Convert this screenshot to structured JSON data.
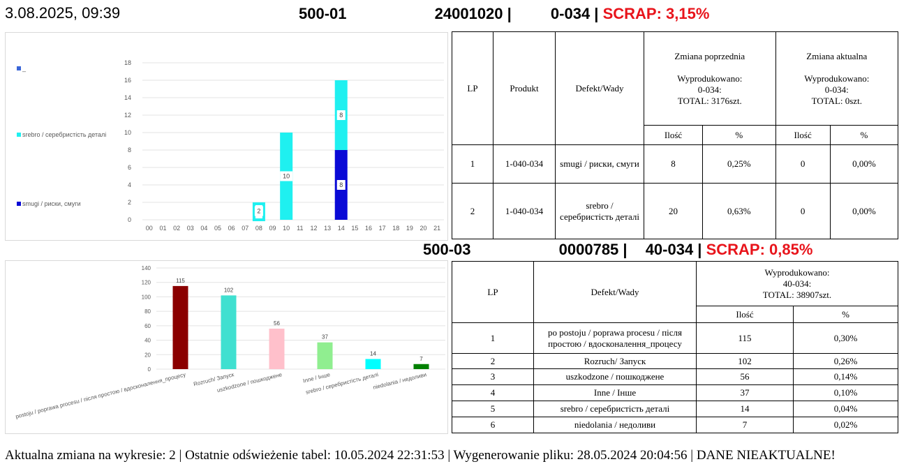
{
  "datetime": "3.08.2025, 09:39",
  "header1": {
    "part1": "500-01",
    "part2": "24001020 |",
    "part3": "0-034 |",
    "scrap": "SCRAP: 3,15%"
  },
  "header2": {
    "part1": "500-03",
    "part2": "0000785 |",
    "part3": "40-034 |",
    "scrap": "SCRAP: 0,85%"
  },
  "chart_data": [
    {
      "type": "bar",
      "stacked": true,
      "categories": [
        "00",
        "01",
        "02",
        "03",
        "04",
        "05",
        "06",
        "07",
        "08",
        "09",
        "10",
        "11",
        "12",
        "13",
        "14",
        "15",
        "16",
        "17",
        "18",
        "19",
        "20",
        "21"
      ],
      "series": [
        {
          "name": "smugi / риски, смуги",
          "color": "#0a0ad6",
          "values": [
            0,
            0,
            0,
            0,
            0,
            0,
            0,
            0,
            0,
            0,
            0,
            0,
            0,
            0,
            8,
            0,
            0,
            0,
            0,
            0,
            0,
            0
          ]
        },
        {
          "name": "srebro / серебристість деталі",
          "color": "#1ff0f0",
          "values": [
            0,
            0,
            0,
            0,
            0,
            0,
            0,
            0,
            0,
            0,
            10,
            0,
            0,
            0,
            8,
            0,
            0,
            0,
            0,
            0,
            0,
            0
          ]
        },
        {
          "name": "_",
          "color": "#3a66d8",
          "values": [
            0,
            0,
            0,
            0,
            0,
            0,
            0,
            0,
            2,
            0,
            0,
            0,
            0,
            0,
            0,
            0,
            0,
            0,
            0,
            0,
            0,
            0
          ]
        }
      ],
      "data_labels": [
        {
          "category": "08",
          "value": 2
        },
        {
          "category": "10",
          "value": 10
        },
        {
          "category": "14",
          "value": 8,
          "series": "srebro / серебристість деталі"
        },
        {
          "category": "14",
          "value": 8,
          "series": "smugi / риски, смуги"
        }
      ],
      "ylim": [
        0,
        18
      ],
      "yticks": [
        0,
        2,
        4,
        6,
        8,
        10,
        12,
        14,
        16,
        18
      ],
      "grid": true,
      "legend": "left"
    },
    {
      "type": "bar",
      "categories": [
        "postoju / poprawa procesu / після простою / вдосконалення_процесу",
        "Rozruch/ Запуск",
        "uszkodzone / пошкоджене",
        "Inne / Інше",
        "srebro / серебристість деталі",
        "niedolania / недоливи"
      ],
      "values": [
        115,
        102,
        56,
        37,
        14,
        7
      ],
      "colors": [
        "#8b0000",
        "#40e0d0",
        "#ffc0cb",
        "#90ee90",
        "#00ffff",
        "#008000"
      ],
      "ylim": [
        0,
        140
      ],
      "yticks": [
        0,
        20,
        40,
        60,
        80,
        100,
        120,
        140
      ],
      "grid": true
    }
  ],
  "table1": {
    "headers": {
      "lp": "LP",
      "produkt": "Produkt",
      "defekt": "Defekt/Wady",
      "prev": "Zmiana poprzednia",
      "curr": "Zmiana aktualna",
      "wyprod": "Wyprodukowano:",
      "prev_part": "0-034:",
      "curr_part": "0-034:",
      "prev_total": "TOTAL: 3176szt.",
      "curr_total": "TOTAL: 0szt.",
      "ilosc": "Ilość",
      "pct": "%"
    },
    "rows": [
      {
        "lp": "1",
        "produkt": "1-040-034",
        "defekt": "smugi / риски, смуги",
        "prev_qty": "8",
        "prev_pct": "0,25%",
        "curr_qty": "0",
        "curr_pct": "0,00%"
      },
      {
        "lp": "2",
        "produkt": "1-040-034",
        "defekt": "srebro / серебристість деталі",
        "prev_qty": "20",
        "prev_pct": "0,63%",
        "curr_qty": "0",
        "curr_pct": "0,00%"
      }
    ]
  },
  "table2": {
    "headers": {
      "lp": "LP",
      "defekt": "Defekt/Wady",
      "wyprod": "Wyprodukowano:",
      "part": "40-034:",
      "total": "TOTAL: 38907szt.",
      "ilosc": "Ilość",
      "pct": "%"
    },
    "rows": [
      {
        "lp": "1",
        "defekt": "po postoju / poprawa procesu / після простою / вдосконалення_процесу",
        "qty": "115",
        "pct": "0,30%"
      },
      {
        "lp": "2",
        "defekt": "Rozruch/ Запуск",
        "qty": "102",
        "pct": "0,26%"
      },
      {
        "lp": "3",
        "defekt": "uszkodzone / пошкоджене",
        "qty": "56",
        "pct": "0,14%"
      },
      {
        "lp": "4",
        "defekt": "Inne / Інше",
        "qty": "37",
        "pct": "0,10%"
      },
      {
        "lp": "5",
        "defekt": "srebro / серебристість деталі",
        "qty": "14",
        "pct": "0,04%"
      },
      {
        "lp": "6",
        "defekt": "niedolania / недоливи",
        "qty": "7",
        "pct": "0,02%"
      }
    ]
  },
  "footer": "Aktualna zmiana na wykresie: 2 | Ostatnie odświeżenie tabel: 10.05.2024 22:31:53 | Wygenerowanie pliku: 28.05.2024 20:04:56 | DANE NIEAKTUALNE!"
}
